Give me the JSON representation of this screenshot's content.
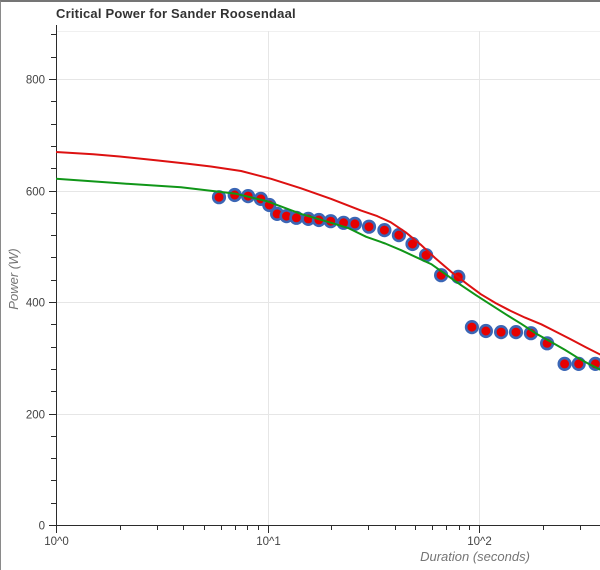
{
  "chart_data": {
    "type": "scatter",
    "title": "Critical Power for Sander Roosendaal",
    "xlabel": "Duration (seconds)",
    "ylabel": "Power (W)",
    "x_scale": "log",
    "xlim": [
      1,
      378
    ],
    "ylim": [
      0,
      884
    ],
    "grid": true,
    "legend_position": "none",
    "x_ticks_major": [
      {
        "t": 1,
        "label": "10^0"
      },
      {
        "t": 10,
        "label": "10^1"
      },
      {
        "t": 100,
        "label": "10^2"
      }
    ],
    "x_ticks_minor": [
      2,
      3,
      4,
      5,
      6,
      7,
      8,
      9,
      20,
      30,
      40,
      50,
      60,
      70,
      80,
      90,
      200,
      300
    ],
    "y_ticks_major": [
      {
        "p": 0,
        "label": "0"
      },
      {
        "p": 200,
        "label": "200"
      },
      {
        "p": 400,
        "label": "400"
      },
      {
        "p": 600,
        "label": "600"
      },
      {
        "p": 800,
        "label": "800"
      }
    ],
    "y_tick_minor_step": 40,
    "series": {
      "observed_points": {
        "type": "scatter",
        "fill_color": "#e60000",
        "ring_color": "#3b66b5",
        "points": [
          [
            5.9,
            588
          ],
          [
            7.0,
            592
          ],
          [
            8.1,
            590
          ],
          [
            9.3,
            585
          ],
          [
            10.2,
            574
          ],
          [
            11.1,
            558
          ],
          [
            12.3,
            554
          ],
          [
            13.7,
            551
          ],
          [
            15.6,
            549
          ],
          [
            17.5,
            547
          ],
          [
            19.9,
            545
          ],
          [
            22.9,
            542
          ],
          [
            25.9,
            540
          ],
          [
            30.2,
            535
          ],
          [
            35.7,
            529
          ],
          [
            41.8,
            520
          ],
          [
            48.5,
            504
          ],
          [
            56.2,
            484
          ],
          [
            66.2,
            448
          ],
          [
            79.8,
            445
          ],
          [
            92.6,
            355
          ],
          [
            107.8,
            348
          ],
          [
            127.2,
            346
          ],
          [
            149.6,
            346
          ],
          [
            175.9,
            344
          ],
          [
            210,
            326
          ],
          [
            254,
            289
          ],
          [
            296,
            289
          ],
          [
            355,
            289
          ]
        ]
      },
      "red_model_curve": {
        "type": "line",
        "color": "#dd1111",
        "points": [
          [
            1,
            669
          ],
          [
            1.5,
            665
          ],
          [
            2,
            661
          ],
          [
            3,
            654
          ],
          [
            4.2,
            648
          ],
          [
            5.4,
            643
          ],
          [
            7.5,
            635
          ],
          [
            10.4,
            621
          ],
          [
            14.4,
            604
          ],
          [
            20,
            585
          ],
          [
            27.7,
            564
          ],
          [
            33,
            554
          ],
          [
            38.3,
            543
          ],
          [
            45,
            525
          ],
          [
            53,
            503
          ],
          [
            62,
            479
          ],
          [
            74,
            454
          ],
          [
            88,
            432
          ],
          [
            102,
            414
          ],
          [
            120,
            398
          ],
          [
            141,
            384
          ],
          [
            165,
            372
          ],
          [
            197,
            360
          ],
          [
            230,
            347
          ],
          [
            272,
            333
          ],
          [
            320,
            319
          ],
          [
            378,
            305
          ]
        ]
      },
      "green_model_curve": {
        "type": "line",
        "color": "#109618",
        "points": [
          [
            1,
            621
          ],
          [
            2,
            613
          ],
          [
            3.9,
            606
          ],
          [
            7.1,
            594
          ],
          [
            9.9,
            581
          ],
          [
            14.4,
            558
          ],
          [
            20,
            542
          ],
          [
            24,
            533
          ],
          [
            29.3,
            517
          ],
          [
            36,
            505
          ],
          [
            42.8,
            493
          ],
          [
            50,
            481
          ],
          [
            59.4,
            468
          ],
          [
            70,
            449
          ],
          [
            82.5,
            430
          ],
          [
            97,
            412
          ],
          [
            114,
            395
          ],
          [
            135,
            377
          ],
          [
            158,
            361
          ],
          [
            185,
            344
          ],
          [
            220,
            328
          ],
          [
            255,
            314
          ],
          [
            290,
            301
          ],
          [
            330,
            289
          ],
          [
            378,
            278
          ]
        ]
      }
    },
    "colors": {
      "gridline": "#e6e6e6",
      "plot_top_line": "#f0f0f0",
      "axis_line": "#2b2b2b",
      "tick_mark": "#2b2b2b",
      "tick_label": "#444444",
      "axis_title": "#757575",
      "title": "#333333",
      "background": "#ffffff"
    }
  }
}
